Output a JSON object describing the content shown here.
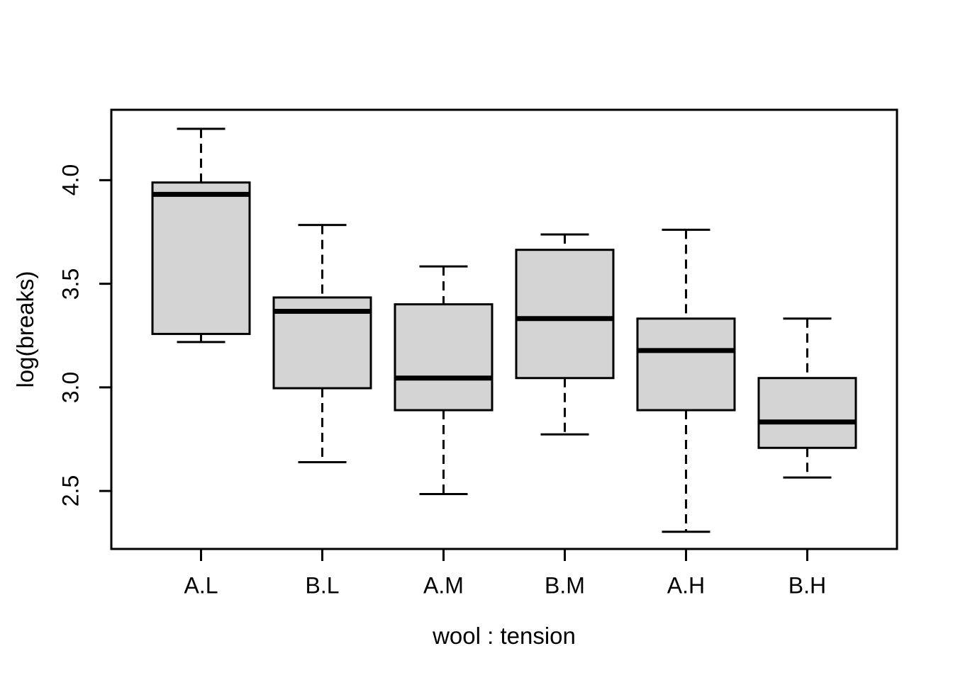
{
  "chart_data": {
    "type": "boxplot",
    "title": "",
    "xlabel": "wool : tension",
    "ylabel": "log(breaks)",
    "categories": [
      "A.L",
      "B.L",
      "A.M",
      "B.M",
      "A.H",
      "B.H"
    ],
    "series": [
      {
        "name": "A.L",
        "min": 3.219,
        "q1": 3.258,
        "median": 3.932,
        "q3": 3.989,
        "max": 4.248
      },
      {
        "name": "B.L",
        "min": 2.639,
        "q1": 2.996,
        "median": 3.367,
        "q3": 3.434,
        "max": 3.784
      },
      {
        "name": "A.M",
        "min": 2.485,
        "q1": 2.89,
        "median": 3.045,
        "q3": 3.401,
        "max": 3.584
      },
      {
        "name": "B.M",
        "min": 2.773,
        "q1": 3.045,
        "median": 3.332,
        "q3": 3.664,
        "max": 3.738
      },
      {
        "name": "A.H",
        "min": 2.303,
        "q1": 2.89,
        "median": 3.178,
        "q3": 3.332,
        "max": 3.761
      },
      {
        "name": "B.H",
        "min": 2.565,
        "q1": 2.708,
        "median": 2.833,
        "q3": 3.045,
        "max": 3.332
      }
    ],
    "y_tick_values": [
      2.5,
      3.0,
      3.5,
      4.0
    ],
    "y_tick_labels": [
      "2.5",
      "3.0",
      "3.5",
      "4.0"
    ],
    "ylim": [
      2.22,
      4.34
    ],
    "xlim": [
      0.26,
      6.74
    ],
    "grid": false,
    "legend": null,
    "colors": {
      "box_fill": "#d4d4d4",
      "stroke": "#000000",
      "text": "#000000",
      "background": "#ffffff"
    }
  }
}
